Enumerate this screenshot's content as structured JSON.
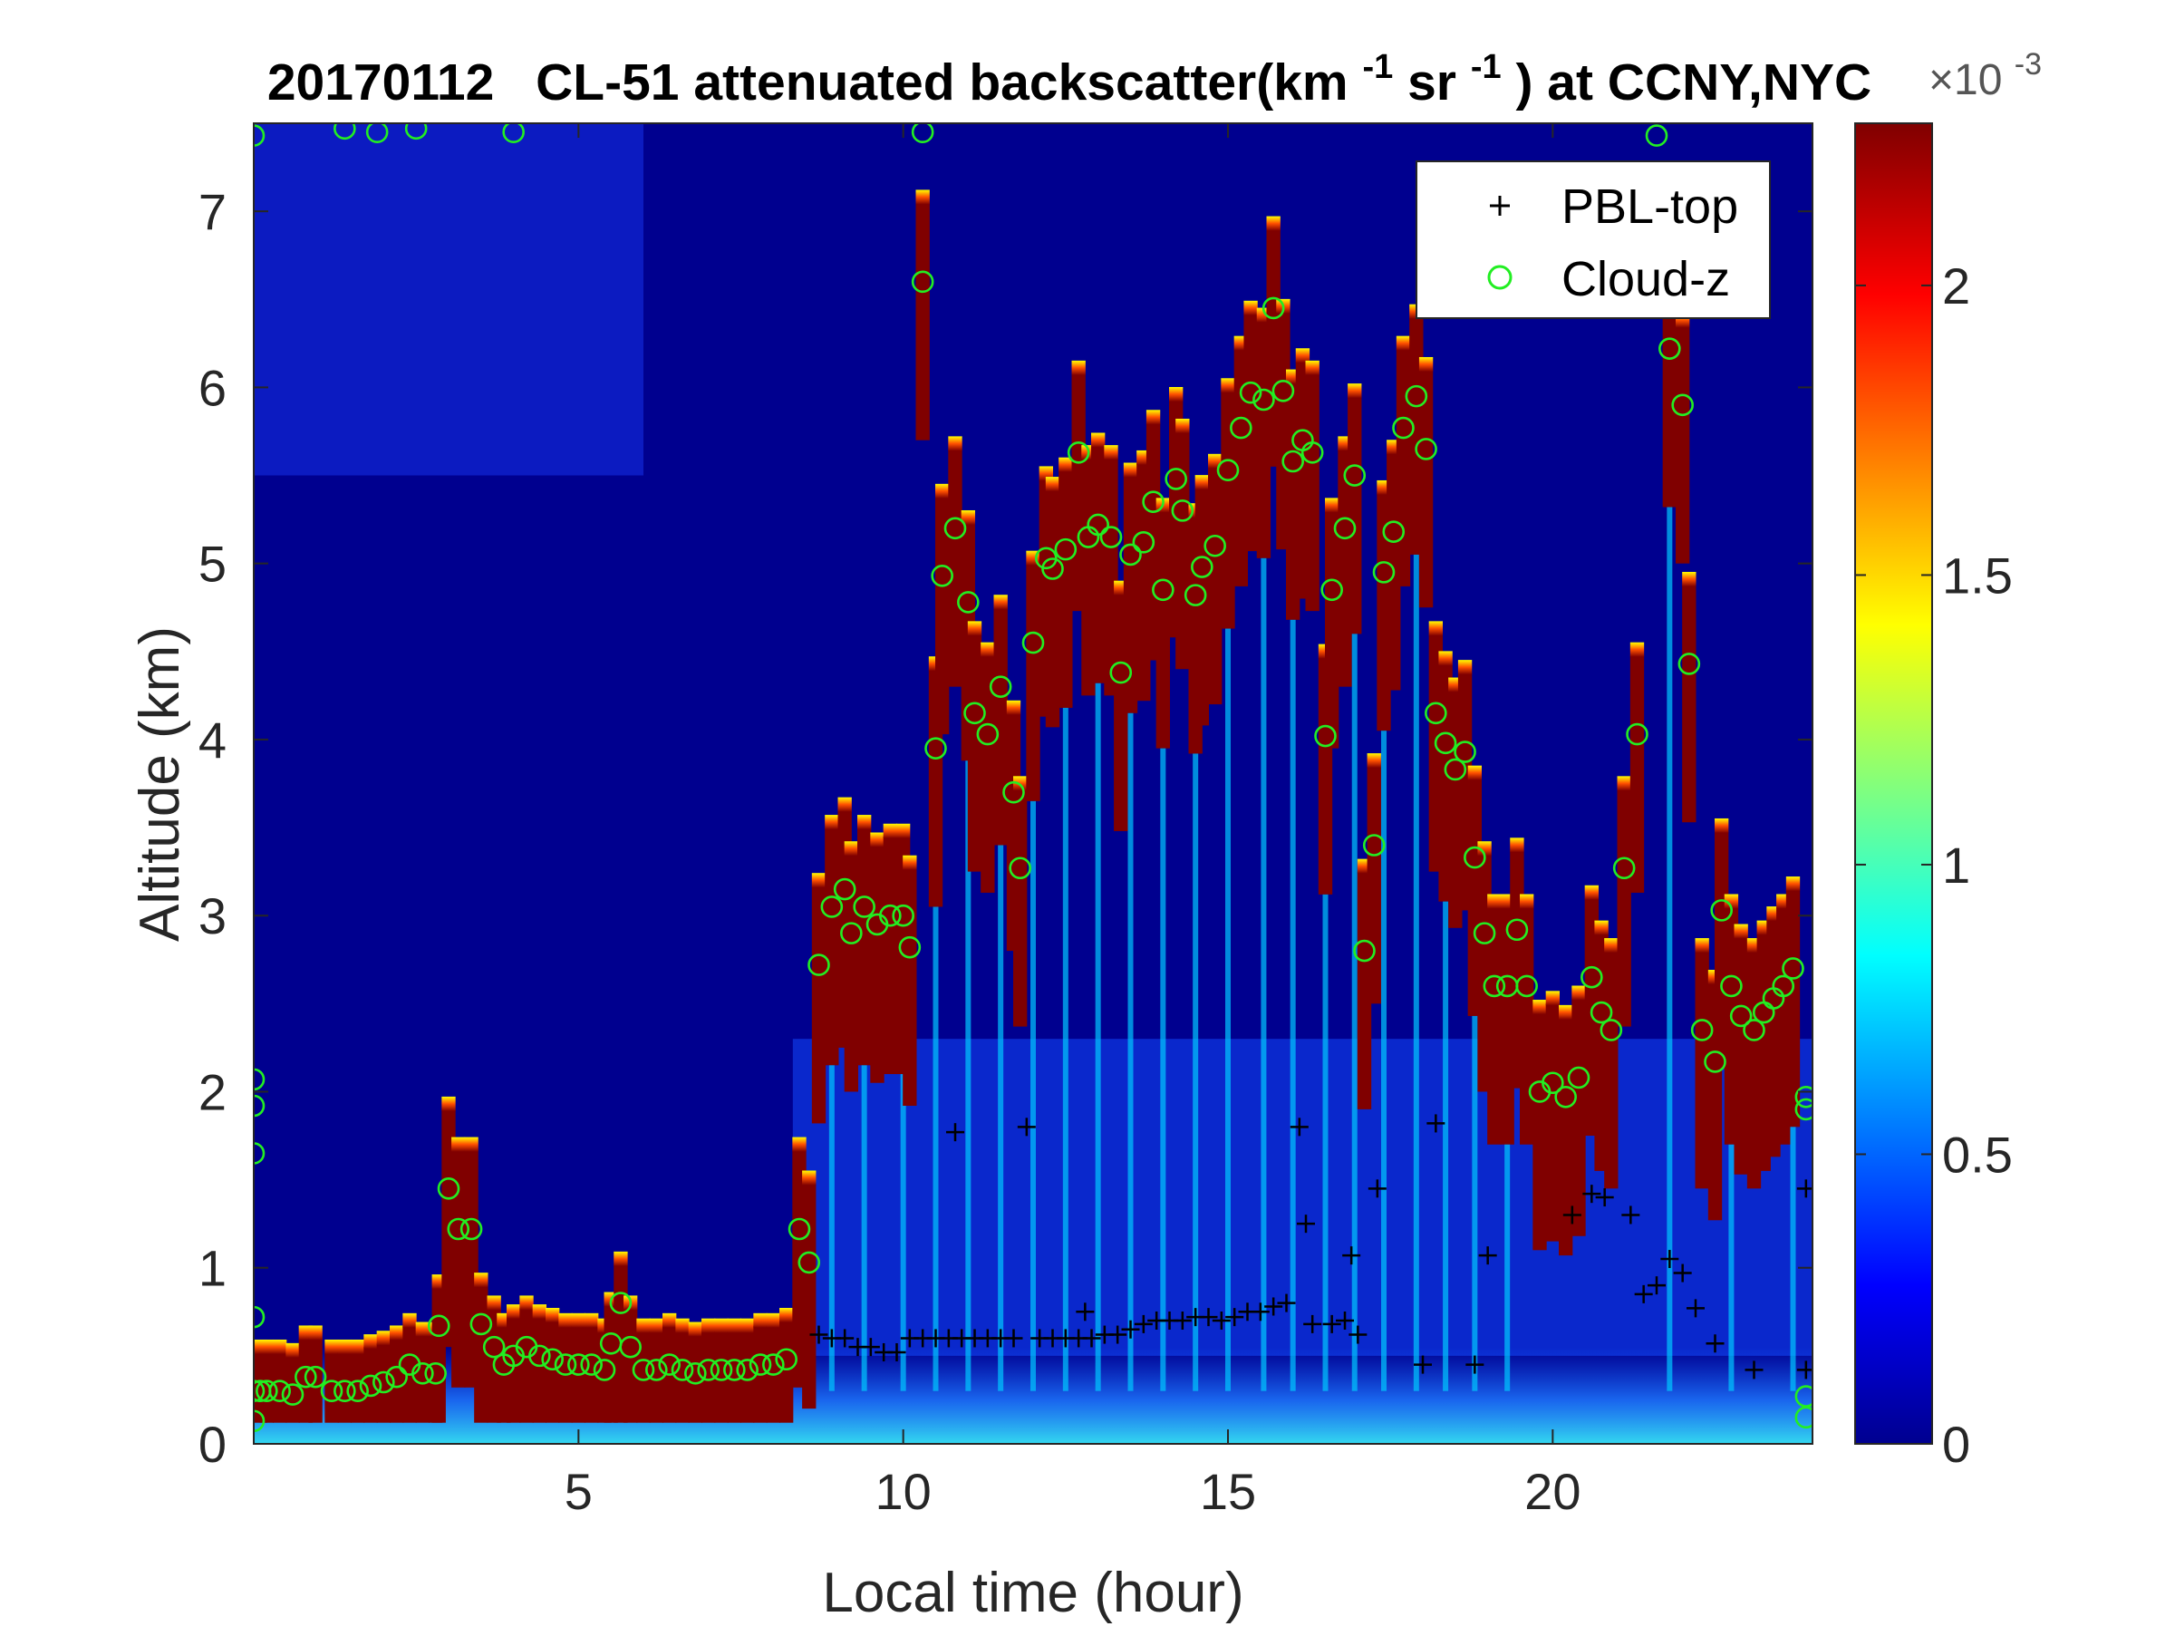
{
  "chart_data": {
    "type": "heatmap",
    "title": {
      "date": "20170112",
      "main": "CL-51 attenuated backscatter(km",
      "sup1": "-1",
      "mid": "sr",
      "sup2": "-1",
      "tail": ") at CCNY,NYC"
    },
    "xlabel": "Local time (hour)",
    "ylabel": "Altitude (km)",
    "xlim": [
      0,
      24
    ],
    "ylim": [
      0,
      7.5
    ],
    "xticks": [
      "5",
      "10",
      "15",
      "20"
    ],
    "yticks": [
      "0",
      "1",
      "2",
      "3",
      "4",
      "5",
      "6",
      "7"
    ],
    "colorbar": {
      "range": [
        0,
        0.00228
      ],
      "ticks": [
        "0",
        "0.5",
        "1",
        "1.5",
        "2"
      ],
      "exponent_base": "×10",
      "exponent": "-3",
      "colormap": "jet"
    },
    "legend": {
      "position": "top-right",
      "entries": [
        {
          "label": "PBL-top",
          "marker": "+",
          "color": "#000000"
        },
        {
          "label": "Cloud-z",
          "marker": "o",
          "color": "#22ee22"
        }
      ]
    },
    "pbl_top": [
      [
        8.7,
        0.62
      ],
      [
        8.9,
        0.6
      ],
      [
        9.1,
        0.6
      ],
      [
        9.3,
        0.55
      ],
      [
        9.5,
        0.55
      ],
      [
        9.7,
        0.52
      ],
      [
        9.9,
        0.52
      ],
      [
        10.1,
        0.6
      ],
      [
        10.3,
        0.6
      ],
      [
        10.5,
        0.6
      ],
      [
        10.7,
        0.6
      ],
      [
        10.8,
        1.77
      ],
      [
        10.9,
        0.6
      ],
      [
        11.1,
        0.6
      ],
      [
        11.3,
        0.6
      ],
      [
        11.5,
        0.6
      ],
      [
        11.7,
        0.6
      ],
      [
        11.9,
        1.8
      ],
      [
        12.1,
        0.6
      ],
      [
        12.3,
        0.6
      ],
      [
        12.5,
        0.6
      ],
      [
        12.7,
        0.6
      ],
      [
        12.8,
        0.75
      ],
      [
        12.9,
        0.6
      ],
      [
        13.1,
        0.62
      ],
      [
        13.3,
        0.62
      ],
      [
        13.5,
        0.65
      ],
      [
        13.7,
        0.68
      ],
      [
        13.9,
        0.7
      ],
      [
        14.1,
        0.7
      ],
      [
        14.3,
        0.7
      ],
      [
        14.5,
        0.72
      ],
      [
        14.7,
        0.72
      ],
      [
        14.9,
        0.7
      ],
      [
        15.1,
        0.72
      ],
      [
        15.3,
        0.75
      ],
      [
        15.5,
        0.75
      ],
      [
        15.7,
        0.78
      ],
      [
        15.9,
        0.8
      ],
      [
        16.1,
        1.8
      ],
      [
        16.2,
        1.25
      ],
      [
        16.3,
        0.68
      ],
      [
        16.6,
        0.68
      ],
      [
        16.8,
        0.7
      ],
      [
        16.9,
        1.07
      ],
      [
        17.0,
        0.62
      ],
      [
        17.3,
        1.45
      ],
      [
        18.0,
        0.45
      ],
      [
        18.2,
        1.82
      ],
      [
        18.8,
        0.45
      ],
      [
        19.0,
        1.07
      ],
      [
        20.3,
        1.3
      ],
      [
        20.6,
        1.42
      ],
      [
        20.8,
        1.4
      ],
      [
        21.2,
        1.3
      ],
      [
        21.4,
        0.85
      ],
      [
        21.6,
        0.9
      ],
      [
        21.8,
        1.05
      ],
      [
        22.0,
        0.97
      ],
      [
        22.2,
        0.77
      ],
      [
        22.5,
        0.57
      ],
      [
        23.1,
        0.42
      ],
      [
        23.9,
        1.45
      ],
      [
        23.9,
        0.42
      ]
    ],
    "cloud_z": [
      [
        0.1,
        0.3
      ],
      [
        0.2,
        0.3
      ],
      [
        0.4,
        0.3
      ],
      [
        0.6,
        0.28
      ],
      [
        0.8,
        0.38
      ],
      [
        0.95,
        0.38
      ],
      [
        1.2,
        0.3
      ],
      [
        1.4,
        0.3
      ],
      [
        1.6,
        0.3
      ],
      [
        1.8,
        0.33
      ],
      [
        2.0,
        0.35
      ],
      [
        2.2,
        0.38
      ],
      [
        2.4,
        0.45
      ],
      [
        2.6,
        0.4
      ],
      [
        2.8,
        0.4
      ],
      [
        2.85,
        0.67
      ],
      [
        3.0,
        1.45
      ],
      [
        3.15,
        1.22
      ],
      [
        3.35,
        1.22
      ],
      [
        3.5,
        0.68
      ],
      [
        3.7,
        0.55
      ],
      [
        3.85,
        0.45
      ],
      [
        4.0,
        0.5
      ],
      [
        4.2,
        0.55
      ],
      [
        4.4,
        0.5
      ],
      [
        4.6,
        0.48
      ],
      [
        4.8,
        0.45
      ],
      [
        5.0,
        0.45
      ],
      [
        5.2,
        0.45
      ],
      [
        5.4,
        0.42
      ],
      [
        5.5,
        0.57
      ],
      [
        5.65,
        0.8
      ],
      [
        5.8,
        0.55
      ],
      [
        6.0,
        0.42
      ],
      [
        6.2,
        0.42
      ],
      [
        6.4,
        0.45
      ],
      [
        6.6,
        0.42
      ],
      [
        6.8,
        0.4
      ],
      [
        7.0,
        0.42
      ],
      [
        7.2,
        0.42
      ],
      [
        7.4,
        0.42
      ],
      [
        7.6,
        0.42
      ],
      [
        7.8,
        0.45
      ],
      [
        8.0,
        0.45
      ],
      [
        8.2,
        0.48
      ],
      [
        8.4,
        1.22
      ],
      [
        8.55,
        1.03
      ],
      [
        8.7,
        2.72
      ],
      [
        8.9,
        3.05
      ],
      [
        9.1,
        3.15
      ],
      [
        9.2,
        2.9
      ],
      [
        9.4,
        3.05
      ],
      [
        9.6,
        2.95
      ],
      [
        9.8,
        3.0
      ],
      [
        10.0,
        3.0
      ],
      [
        10.1,
        2.82
      ],
      [
        10.3,
        6.6
      ],
      [
        10.5,
        3.95
      ],
      [
        10.6,
        4.93
      ],
      [
        10.8,
        5.2
      ],
      [
        11.0,
        4.78
      ],
      [
        11.1,
        4.15
      ],
      [
        11.3,
        4.03
      ],
      [
        11.5,
        4.3
      ],
      [
        11.7,
        3.7
      ],
      [
        11.8,
        3.27
      ],
      [
        12.0,
        4.55
      ],
      [
        12.2,
        5.03
      ],
      [
        12.3,
        4.97
      ],
      [
        12.5,
        5.08
      ],
      [
        12.7,
        5.63
      ],
      [
        12.85,
        5.15
      ],
      [
        13.0,
        5.22
      ],
      [
        13.2,
        5.15
      ],
      [
        13.35,
        4.38
      ],
      [
        13.5,
        5.05
      ],
      [
        13.7,
        5.12
      ],
      [
        13.85,
        5.35
      ],
      [
        14.0,
        4.85
      ],
      [
        14.2,
        5.48
      ],
      [
        14.3,
        5.3
      ],
      [
        14.5,
        4.82
      ],
      [
        14.6,
        4.98
      ],
      [
        14.8,
        5.1
      ],
      [
        15.0,
        5.53
      ],
      [
        15.2,
        5.77
      ],
      [
        15.35,
        5.97
      ],
      [
        15.55,
        5.93
      ],
      [
        15.7,
        6.45
      ],
      [
        15.85,
        5.98
      ],
      [
        16.0,
        5.58
      ],
      [
        16.15,
        5.7
      ],
      [
        16.3,
        5.63
      ],
      [
        16.5,
        4.02
      ],
      [
        16.6,
        4.85
      ],
      [
        16.8,
        5.2
      ],
      [
        16.95,
        5.5
      ],
      [
        17.1,
        2.8
      ],
      [
        17.25,
        3.4
      ],
      [
        17.4,
        4.95
      ],
      [
        17.55,
        5.18
      ],
      [
        17.7,
        5.77
      ],
      [
        17.9,
        5.95
      ],
      [
        18.05,
        5.65
      ],
      [
        18.2,
        4.15
      ],
      [
        18.35,
        3.98
      ],
      [
        18.5,
        3.83
      ],
      [
        18.65,
        3.93
      ],
      [
        18.8,
        3.33
      ],
      [
        18.95,
        2.9
      ],
      [
        19.1,
        2.6
      ],
      [
        19.3,
        2.6
      ],
      [
        19.45,
        2.92
      ],
      [
        19.6,
        2.6
      ],
      [
        19.8,
        2.0
      ],
      [
        20.0,
        2.05
      ],
      [
        20.2,
        1.97
      ],
      [
        20.4,
        2.08
      ],
      [
        20.6,
        2.65
      ],
      [
        20.75,
        2.45
      ],
      [
        20.9,
        2.35
      ],
      [
        21.1,
        3.27
      ],
      [
        21.3,
        4.03
      ],
      [
        21.6,
        7.43
      ],
      [
        21.8,
        6.22
      ],
      [
        22.0,
        5.9
      ],
      [
        22.1,
        4.43
      ],
      [
        22.3,
        2.35
      ],
      [
        22.5,
        2.17
      ],
      [
        22.6,
        3.03
      ],
      [
        22.75,
        2.6
      ],
      [
        22.9,
        2.43
      ],
      [
        23.1,
        2.35
      ],
      [
        23.25,
        2.45
      ],
      [
        23.4,
        2.53
      ],
      [
        23.55,
        2.6
      ],
      [
        23.7,
        2.7
      ],
      [
        0.0,
        7.43
      ],
      [
        1.4,
        7.47
      ],
      [
        1.9,
        7.45
      ],
      [
        2.5,
        7.47
      ],
      [
        4.0,
        7.45
      ],
      [
        10.3,
        7.45
      ],
      [
        0.0,
        2.07
      ],
      [
        0.0,
        1.92
      ],
      [
        0.0,
        1.65
      ],
      [
        0.0,
        0.72
      ],
      [
        0.0,
        0.3
      ],
      [
        0.0,
        0.13
      ],
      [
        23.9,
        1.97
      ],
      [
        23.9,
        1.9
      ],
      [
        23.9,
        0.27
      ],
      [
        23.9,
        0.15
      ]
    ]
  }
}
